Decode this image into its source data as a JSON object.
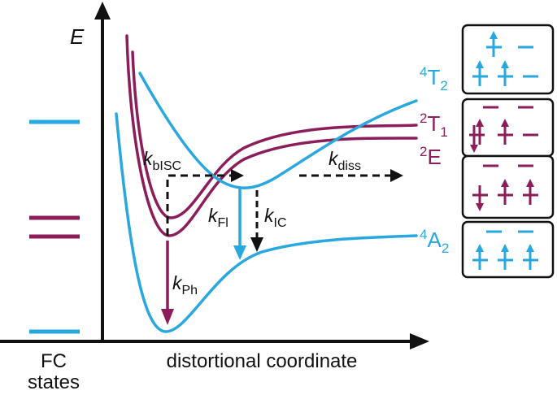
{
  "colors": {
    "blue": "#29A7DF",
    "purple": "#8B1E5A",
    "black": "#111111"
  },
  "axes": {
    "y_label": "E",
    "x_label": "distortional coordinate",
    "fc_line1": "FC",
    "fc_line2": "states"
  },
  "states": {
    "t2": {
      "sup": "4",
      "main": "T",
      "sub": "2"
    },
    "t1": {
      "sup": "2",
      "main": "T",
      "sub": "1"
    },
    "e": {
      "sup": "2",
      "main": "E"
    },
    "a2": {
      "sup": "4",
      "main": "A",
      "sub": "2"
    }
  },
  "rates": {
    "kbisc": {
      "k": "k",
      "sub": "bISC"
    },
    "kfl": {
      "k": "k",
      "sub": "Fl"
    },
    "kic": {
      "k": "k",
      "sub": "IC"
    },
    "kdiss": {
      "k": "k",
      "sub": "diss"
    },
    "kph": {
      "k": "k",
      "sub": "Ph"
    }
  }
}
